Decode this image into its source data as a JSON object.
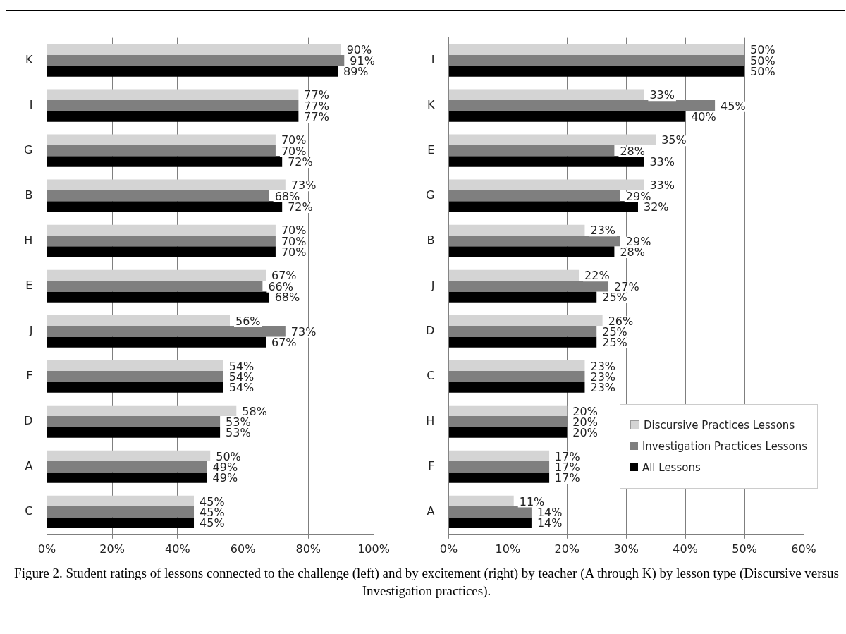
{
  "chart_data": [
    {
      "type": "bar",
      "orientation": "horizontal",
      "categories": [
        "K",
        "I",
        "G",
        "B",
        "H",
        "E",
        "J",
        "F",
        "D",
        "A",
        "C"
      ],
      "series": [
        {
          "color": "#d4d4d4",
          "values": [
            90,
            77,
            70,
            73,
            70,
            67,
            56,
            54,
            58,
            50,
            45
          ],
          "value_labels": [
            "90%",
            "77%",
            "70%",
            "73%",
            "70%",
            "67%",
            "56%",
            "54%",
            "58%",
            "50%",
            "45%"
          ]
        },
        {
          "color": "#7f7f7f",
          "values": [
            91,
            77,
            70,
            68,
            70,
            66,
            73,
            54,
            53,
            49,
            45
          ],
          "value_labels": [
            "91%",
            "77%",
            "70%",
            "68%",
            "70%",
            "66%",
            "73%",
            "54%",
            "53%",
            "49%",
            "45%"
          ]
        },
        {
          "color": "#000000",
          "values": [
            89,
            77,
            72,
            72,
            70,
            68,
            67,
            54,
            53,
            49,
            45
          ],
          "value_labels": [
            "89%",
            "77%",
            "72%",
            "72%",
            "70%",
            "68%",
            "67%",
            "54%",
            "53%",
            "49%",
            "45%"
          ]
        }
      ],
      "xlim": [
        0,
        100
      ],
      "xticks": [
        {
          "value": 0,
          "label": "0%"
        },
        {
          "value": 20,
          "label": "20%"
        },
        {
          "value": 40,
          "label": "40%"
        },
        {
          "value": 60,
          "label": "60%"
        },
        {
          "value": 80,
          "label": "80%"
        },
        {
          "value": 100,
          "label": "100%"
        }
      ],
      "grid": "x"
    },
    {
      "type": "bar",
      "orientation": "horizontal",
      "categories": [
        "I",
        "K",
        "E",
        "G",
        "B",
        "J",
        "D",
        "C",
        "H",
        "F",
        "A"
      ],
      "series": [
        {
          "name": "Discursive Practices Lessons",
          "color": "#d4d4d4",
          "values": [
            50,
            33,
            35,
            33,
            23,
            22,
            26,
            23,
            20,
            17,
            11
          ],
          "value_labels": [
            "50%",
            "33%",
            "35%",
            "33%",
            "23%",
            "22%",
            "26%",
            "23%",
            "20%",
            "17%",
            "11%"
          ]
        },
        {
          "name": "Investigation Practices Lessons",
          "color": "#7f7f7f",
          "values": [
            50,
            45,
            28,
            29,
            29,
            27,
            25,
            23,
            20,
            17,
            14
          ],
          "value_labels": [
            "50%",
            "45%",
            "28%",
            "29%",
            "29%",
            "27%",
            "25%",
            "23%",
            "20%",
            "17%",
            "14%"
          ]
        },
        {
          "name": "All Lessons",
          "color": "#000000",
          "values": [
            50,
            40,
            33,
            32,
            28,
            25,
            25,
            23,
            20,
            17,
            14
          ],
          "value_labels": [
            "50%",
            "40%",
            "33%",
            "32%",
            "28%",
            "25%",
            "25%",
            "23%",
            "20%",
            "17%",
            "14%"
          ]
        }
      ],
      "xlim": [
        0,
        60
      ],
      "xticks": [
        {
          "value": 0,
          "label": "0%"
        },
        {
          "value": 10,
          "label": "10%"
        },
        {
          "value": 20,
          "label": "20%"
        },
        {
          "value": 30,
          "label": "30%"
        },
        {
          "value": 40,
          "label": "40%"
        },
        {
          "value": 50,
          "label": "50%"
        },
        {
          "value": 60,
          "label": "60%"
        }
      ],
      "grid": "x",
      "legend": "bottom right",
      "annotations": [
        "Figure 2. Student ratings of lessons connected to the challenge (left) and by excitement (right) by teacher (A through K) by lesson type (Discursive versus Investigation practices)."
      ]
    }
  ]
}
